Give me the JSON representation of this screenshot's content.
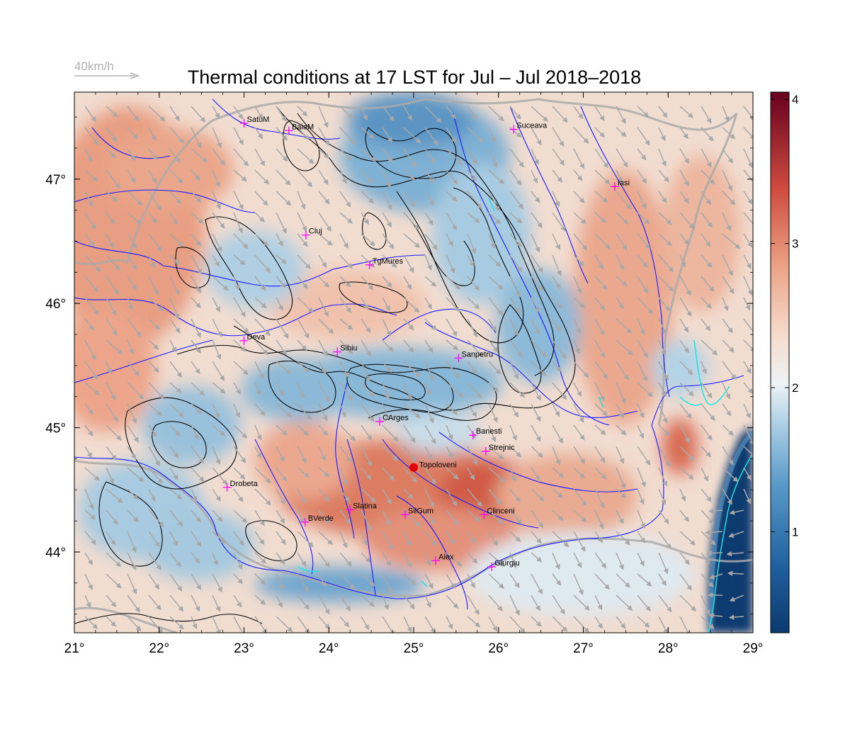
{
  "title": "Thermal conditions at 17 LST for Jul – Jul  2018–2018",
  "wind_scale_label": "40km/h",
  "map": {
    "lon_range": [
      21,
      29
    ],
    "lat_range": [
      43.35,
      47.7
    ],
    "x_ticks": [
      "21°",
      "22°",
      "23°",
      "24°",
      "25°",
      "26°",
      "27°",
      "28°",
      "29°"
    ],
    "y_ticks": [
      "44°",
      "45°",
      "46°",
      "47°"
    ],
    "cities": [
      {
        "name": "SatuM",
        "lon": 23.0,
        "lat": 47.45
      },
      {
        "name": "BaiaM",
        "lon": 23.53,
        "lat": 47.39
      },
      {
        "name": "Suceava",
        "lon": 26.18,
        "lat": 47.4
      },
      {
        "name": "Iasi",
        "lon": 27.37,
        "lat": 46.94
      },
      {
        "name": "Cluj",
        "lon": 23.73,
        "lat": 46.55
      },
      {
        "name": "TgMures",
        "lon": 24.48,
        "lat": 46.31
      },
      {
        "name": "Deva",
        "lon": 23.0,
        "lat": 45.7
      },
      {
        "name": "Sibiu",
        "lon": 24.1,
        "lat": 45.61
      },
      {
        "name": "Sanpetru",
        "lon": 25.53,
        "lat": 45.56
      },
      {
        "name": "CArges",
        "lon": 24.6,
        "lat": 45.05
      },
      {
        "name": "Banesti",
        "lon": 25.7,
        "lat": 44.94
      },
      {
        "name": "Strejnic",
        "lon": 25.85,
        "lat": 44.81
      },
      {
        "name": "Drobeta",
        "lon": 22.8,
        "lat": 44.52
      },
      {
        "name": "Slatina",
        "lon": 24.25,
        "lat": 44.34
      },
      {
        "name": "SilGum",
        "lon": 24.9,
        "lat": 44.3
      },
      {
        "name": "Clinceni",
        "lon": 25.83,
        "lat": 44.3
      },
      {
        "name": "BVerde",
        "lon": 23.72,
        "lat": 44.24
      },
      {
        "name": "Alex",
        "lon": 25.26,
        "lat": 43.93
      },
      {
        "name": "Giurgiu",
        "lon": 25.92,
        "lat": 43.88
      }
    ],
    "highlight": {
      "name": "Topoloveni",
      "lon": 25.0,
      "lat": 44.68,
      "color": "#e00000"
    }
  },
  "colorbar": {
    "ticks": [
      "1",
      "2",
      "3",
      "4"
    ],
    "range": [
      0.3,
      4.05
    ],
    "colors": [
      "#0b3a6e",
      "#2f76b7",
      "#8fc0dd",
      "#e8eff3",
      "#f5ddd0",
      "#e7987a",
      "#c9423a",
      "#67001f"
    ]
  },
  "colors": {
    "rivers": "#1a1aff",
    "borders": "#aaaaaa",
    "contours": "#000000",
    "city_marker": "#ff00ff",
    "wind_arrows": "#a8a8a8"
  }
}
